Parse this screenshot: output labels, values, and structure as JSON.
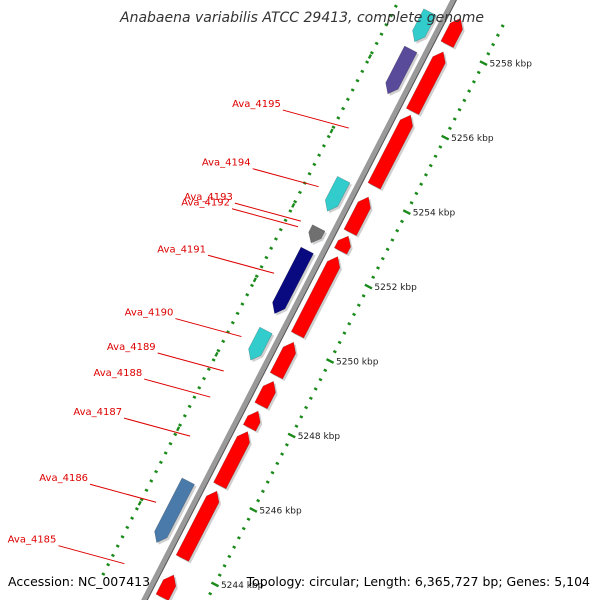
{
  "title": "Anabaena variabilis ATCC 29413, complete genome",
  "accession": "Accession: NC_007413",
  "summary": "Topology: circular; Length: 6,365,727 bp; Genes: 5,104",
  "colors": {
    "backbone": "#9a9a9a",
    "red": "#ff0000",
    "cyan": "#33cccc",
    "navy": "#0a0a80",
    "purple": "#5a4a9a",
    "steel": "#4a7aaa",
    "gray": "#707070",
    "label": "#dd0000",
    "tick": "#1a8a1a"
  },
  "scale": {
    "ticks": [
      {
        "kbp": 5244,
        "label": "5244 kbp"
      },
      {
        "kbp": 5246,
        "label": "5246 kbp"
      },
      {
        "kbp": 5248,
        "label": "5248 kbp"
      },
      {
        "kbp": 5250,
        "label": "5250 kbp"
      },
      {
        "kbp": 5252,
        "label": "5252 kbp"
      },
      {
        "kbp": 5254,
        "label": "5254 kbp"
      },
      {
        "kbp": 5256,
        "label": "5256 kbp"
      },
      {
        "kbp": 5258,
        "label": "5258 kbp"
      }
    ]
  },
  "genes": [
    {
      "label": "Ava_4185",
      "start": 5243.15,
      "end": 5243.75,
      "strand": "+",
      "color": "red"
    },
    {
      "label": "Ava_4186",
      "start": 5244.2,
      "end": 5246.0,
      "strand": "+",
      "color": "red"
    },
    {
      "label": "",
      "start": 5244.25,
      "end": 5245.9,
      "strand": "-",
      "color": "steel"
    },
    {
      "label": "Ava_4187",
      "start": 5246.15,
      "end": 5247.6,
      "strand": "+",
      "color": "red"
    },
    {
      "label": "Ava_4188",
      "start": 5247.7,
      "end": 5248.15,
      "strand": "+",
      "color": "red"
    },
    {
      "label": "Ava_4189",
      "start": 5248.3,
      "end": 5248.95,
      "strand": "+",
      "color": "red"
    },
    {
      "label": "Ava_4190",
      "start": 5249.15,
      "end": 5249.95,
      "strand": "-",
      "color": "cyan"
    },
    {
      "label": "",
      "start": 5249.1,
      "end": 5250.0,
      "strand": "+",
      "color": "red"
    },
    {
      "label": "Ava_4191",
      "start": 5250.2,
      "end": 5252.3,
      "strand": "+",
      "color": "red"
    },
    {
      "label": "",
      "start": 5250.4,
      "end": 5252.1,
      "strand": "-",
      "color": "navy"
    },
    {
      "label": "Ava_4192",
      "start": 5252.3,
      "end": 5252.7,
      "strand": "-",
      "color": "gray"
    },
    {
      "label": "Ava_4193",
      "start": 5252.45,
      "end": 5252.85,
      "strand": "+",
      "color": "red"
    },
    {
      "label": "",
      "start": 5252.95,
      "end": 5253.9,
      "strand": "+",
      "color": "red"
    },
    {
      "label": "Ava_4194",
      "start": 5253.15,
      "end": 5254.0,
      "strand": "-",
      "color": "cyan"
    },
    {
      "label": "Ava_4195",
      "start": 5254.2,
      "end": 5256.1,
      "strand": "+",
      "color": "red"
    },
    {
      "label": "",
      "start": 5256.2,
      "end": 5257.8,
      "strand": "+",
      "color": "red"
    },
    {
      "label": "",
      "start": 5256.3,
      "end": 5257.5,
      "strand": "-",
      "color": "purple"
    },
    {
      "label": "",
      "start": 5257.7,
      "end": 5258.5,
      "strand": "-",
      "color": "cyan"
    },
    {
      "label": "",
      "start": 5258.0,
      "end": 5258.7,
      "strand": "+",
      "color": "red"
    }
  ]
}
